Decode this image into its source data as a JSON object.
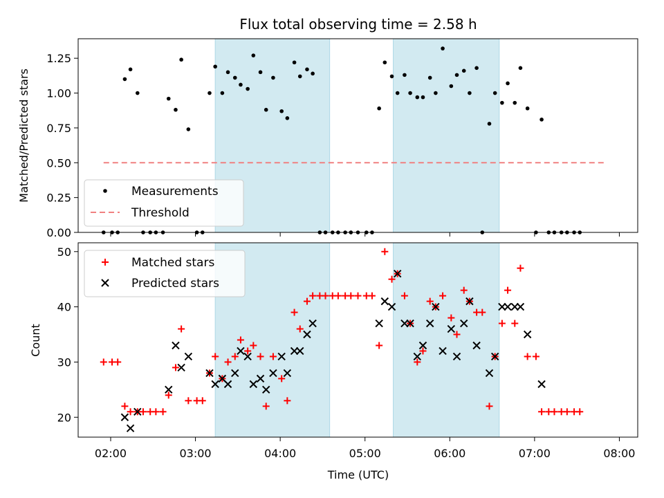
{
  "title": "Flux total observing time = 2.58 h",
  "xlabel": "Time (UTC)",
  "colors": {
    "shade": "#add8e6",
    "threshold": "#f08080",
    "matched": "#ff0000",
    "predicted": "#000000",
    "points": "#000000"
  },
  "chart_data": [
    {
      "type": "scatter",
      "panel": "top",
      "title": "Flux total observing time = 2.58 h",
      "ylabel": "Matched/Predicted stars",
      "ylim": [
        0,
        1.39
      ],
      "yticks": [
        0,
        0.25,
        0.5,
        0.75,
        1.0,
        1.25
      ],
      "ytick_labels": [
        "0.00",
        "0.25",
        "0.50",
        "0.75",
        "1.00",
        "1.25"
      ],
      "xlim": [
        "01:37",
        "08:13"
      ],
      "xticks": [
        "02:00",
        "03:00",
        "04:00",
        "05:00",
        "06:00",
        "07:00",
        "08:00"
      ],
      "legend": "lower-left",
      "shaded_intervals": [
        [
          "03:14",
          "04:35"
        ],
        [
          "05:20",
          "06:35"
        ]
      ],
      "threshold": {
        "name": "Threshold",
        "y": 0.5,
        "x_range": [
          "01:55",
          "07:50"
        ]
      },
      "series": [
        {
          "name": "Measurements",
          "points": [
            [
              "01:55",
              0.0
            ],
            [
              "02:01",
              0.0
            ],
            [
              "02:05",
              0.0
            ],
            [
              "02:10",
              1.1
            ],
            [
              "02:14",
              1.17
            ],
            [
              "02:19",
              1.0
            ],
            [
              "02:23",
              0.0
            ],
            [
              "02:28",
              0.0
            ],
            [
              "02:32",
              0.0
            ],
            [
              "02:37",
              0.0
            ],
            [
              "02:41",
              0.96
            ],
            [
              "02:46",
              0.88
            ],
            [
              "02:50",
              1.24
            ],
            [
              "02:55",
              0.74
            ],
            [
              "03:01",
              0.0
            ],
            [
              "03:05",
              0.0
            ],
            [
              "03:10",
              1.0
            ],
            [
              "03:14",
              1.19
            ],
            [
              "03:19",
              1.0
            ],
            [
              "03:23",
              1.15
            ],
            [
              "03:28",
              1.11
            ],
            [
              "03:32",
              1.06
            ],
            [
              "03:37",
              1.03
            ],
            [
              "03:41",
              1.27
            ],
            [
              "03:46",
              1.15
            ],
            [
              "03:50",
              0.88
            ],
            [
              "03:55",
              1.11
            ],
            [
              "04:01",
              0.87
            ],
            [
              "04:05",
              0.82
            ],
            [
              "04:10",
              1.22
            ],
            [
              "04:14",
              1.12
            ],
            [
              "04:19",
              1.17
            ],
            [
              "04:23",
              1.14
            ],
            [
              "04:28",
              0.0
            ],
            [
              "04:32",
              0.0
            ],
            [
              "04:37",
              0.0
            ],
            [
              "04:41",
              0.0
            ],
            [
              "04:46",
              0.0
            ],
            [
              "04:50",
              0.0
            ],
            [
              "04:55",
              0.0
            ],
            [
              "05:01",
              0.0
            ],
            [
              "05:05",
              0.0
            ],
            [
              "05:10",
              0.89
            ],
            [
              "05:14",
              1.22
            ],
            [
              "05:19",
              1.12
            ],
            [
              "05:23",
              1.0
            ],
            [
              "05:28",
              1.13
            ],
            [
              "05:32",
              1.0
            ],
            [
              "05:37",
              0.97
            ],
            [
              "05:41",
              0.97
            ],
            [
              "05:46",
              1.11
            ],
            [
              "05:50",
              1.0
            ],
            [
              "05:55",
              1.32
            ],
            [
              "06:01",
              1.05
            ],
            [
              "06:05",
              1.13
            ],
            [
              "06:10",
              1.16
            ],
            [
              "06:14",
              1.0
            ],
            [
              "06:19",
              1.18
            ],
            [
              "06:23",
              0.0
            ],
            [
              "06:28",
              0.78
            ],
            [
              "06:32",
              1.0
            ],
            [
              "06:37",
              0.93
            ],
            [
              "06:41",
              1.07
            ],
            [
              "06:46",
              0.93
            ],
            [
              "06:50",
              1.18
            ],
            [
              "06:55",
              0.89
            ],
            [
              "07:01",
              0.0
            ],
            [
              "07:05",
              0.81
            ],
            [
              "07:10",
              0.0
            ],
            [
              "07:14",
              0.0
            ],
            [
              "07:19",
              0.0
            ],
            [
              "07:23",
              0.0
            ],
            [
              "07:28",
              0.0
            ],
            [
              "07:32",
              0.0
            ]
          ]
        }
      ]
    },
    {
      "type": "scatter",
      "panel": "bottom",
      "ylabel": "Count",
      "ylim": [
        16.4,
        51.6
      ],
      "yticks": [
        20,
        30,
        40,
        50
      ],
      "ytick_labels": [
        "20",
        "30",
        "40",
        "50"
      ],
      "xlim": [
        "01:37",
        "08:13"
      ],
      "xticks": [
        "02:00",
        "03:00",
        "04:00",
        "05:00",
        "06:00",
        "07:00",
        "08:00"
      ],
      "xtick_labels": [
        "02:00",
        "03:00",
        "04:00",
        "05:00",
        "06:00",
        "07:00",
        "08:00"
      ],
      "xlabel": "Time (UTC)",
      "legend": "upper-left",
      "shaded_intervals": [
        [
          "03:14",
          "04:35"
        ],
        [
          "05:20",
          "06:35"
        ]
      ],
      "series": [
        {
          "name": "Matched stars",
          "marker": "plus",
          "points": [
            [
              "01:55",
              30
            ],
            [
              "02:01",
              30
            ],
            [
              "02:05",
              30
            ],
            [
              "02:10",
              22
            ],
            [
              "02:14",
              21
            ],
            [
              "02:19",
              21
            ],
            [
              "02:23",
              21
            ],
            [
              "02:28",
              21
            ],
            [
              "02:32",
              21
            ],
            [
              "02:37",
              21
            ],
            [
              "02:41",
              24
            ],
            [
              "02:46",
              29
            ],
            [
              "02:50",
              36
            ],
            [
              "02:55",
              23
            ],
            [
              "03:01",
              23
            ],
            [
              "03:05",
              23
            ],
            [
              "03:10",
              28
            ],
            [
              "03:14",
              31
            ],
            [
              "03:19",
              27
            ],
            [
              "03:23",
              30
            ],
            [
              "03:28",
              31
            ],
            [
              "03:32",
              34
            ],
            [
              "03:37",
              32
            ],
            [
              "03:41",
              33
            ],
            [
              "03:46",
              31
            ],
            [
              "03:50",
              22
            ],
            [
              "03:55",
              31
            ],
            [
              "04:01",
              27
            ],
            [
              "04:05",
              23
            ],
            [
              "04:10",
              39
            ],
            [
              "04:14",
              36
            ],
            [
              "04:19",
              41
            ],
            [
              "04:23",
              42
            ],
            [
              "04:28",
              42
            ],
            [
              "04:32",
              42
            ],
            [
              "04:37",
              42
            ],
            [
              "04:41",
              42
            ],
            [
              "04:46",
              42
            ],
            [
              "04:50",
              42
            ],
            [
              "04:55",
              42
            ],
            [
              "05:01",
              42
            ],
            [
              "05:05",
              42
            ],
            [
              "05:10",
              33
            ],
            [
              "05:14",
              50
            ],
            [
              "05:19",
              45
            ],
            [
              "05:23",
              46
            ],
            [
              "05:28",
              42
            ],
            [
              "05:32",
              37
            ],
            [
              "05:37",
              30
            ],
            [
              "05:41",
              32
            ],
            [
              "05:46",
              41
            ],
            [
              "05:50",
              40
            ],
            [
              "05:55",
              42
            ],
            [
              "06:01",
              38
            ],
            [
              "06:05",
              35
            ],
            [
              "06:10",
              43
            ],
            [
              "06:14",
              41
            ],
            [
              "06:19",
              39
            ],
            [
              "06:23",
              39
            ],
            [
              "06:28",
              22
            ],
            [
              "06:32",
              31
            ],
            [
              "06:37",
              37
            ],
            [
              "06:41",
              43
            ],
            [
              "06:46",
              37
            ],
            [
              "06:50",
              47
            ],
            [
              "06:55",
              31
            ],
            [
              "07:01",
              31
            ],
            [
              "07:05",
              21
            ],
            [
              "07:10",
              21
            ],
            [
              "07:14",
              21
            ],
            [
              "07:19",
              21
            ],
            [
              "07:23",
              21
            ],
            [
              "07:28",
              21
            ],
            [
              "07:32",
              21
            ]
          ]
        },
        {
          "name": "Predicted stars",
          "marker": "x",
          "points": [
            [
              "02:10",
              20
            ],
            [
              "02:14",
              18
            ],
            [
              "02:19",
              21
            ],
            [
              "02:41",
              25
            ],
            [
              "02:46",
              33
            ],
            [
              "02:50",
              29
            ],
            [
              "02:55",
              31
            ],
            [
              "03:10",
              28
            ],
            [
              "03:14",
              26
            ],
            [
              "03:19",
              27
            ],
            [
              "03:23",
              26
            ],
            [
              "03:28",
              28
            ],
            [
              "03:32",
              32
            ],
            [
              "03:37",
              31
            ],
            [
              "03:41",
              26
            ],
            [
              "03:46",
              27
            ],
            [
              "03:50",
              25
            ],
            [
              "03:55",
              28
            ],
            [
              "04:01",
              31
            ],
            [
              "04:05",
              28
            ],
            [
              "04:10",
              32
            ],
            [
              "04:14",
              32
            ],
            [
              "04:19",
              35
            ],
            [
              "04:23",
              37
            ],
            [
              "05:10",
              37
            ],
            [
              "05:14",
              41
            ],
            [
              "05:19",
              40
            ],
            [
              "05:23",
              46
            ],
            [
              "05:28",
              37
            ],
            [
              "05:32",
              37
            ],
            [
              "05:37",
              31
            ],
            [
              "05:41",
              33
            ],
            [
              "05:46",
              37
            ],
            [
              "05:50",
              40
            ],
            [
              "05:55",
              32
            ],
            [
              "06:01",
              36
            ],
            [
              "06:05",
              31
            ],
            [
              "06:10",
              37
            ],
            [
              "06:14",
              41
            ],
            [
              "06:19",
              33
            ],
            [
              "06:28",
              28
            ],
            [
              "06:32",
              31
            ],
            [
              "06:37",
              40
            ],
            [
              "06:41",
              40
            ],
            [
              "06:46",
              40
            ],
            [
              "06:50",
              40
            ],
            [
              "06:55",
              35
            ],
            [
              "07:05",
              26
            ]
          ]
        }
      ]
    }
  ]
}
